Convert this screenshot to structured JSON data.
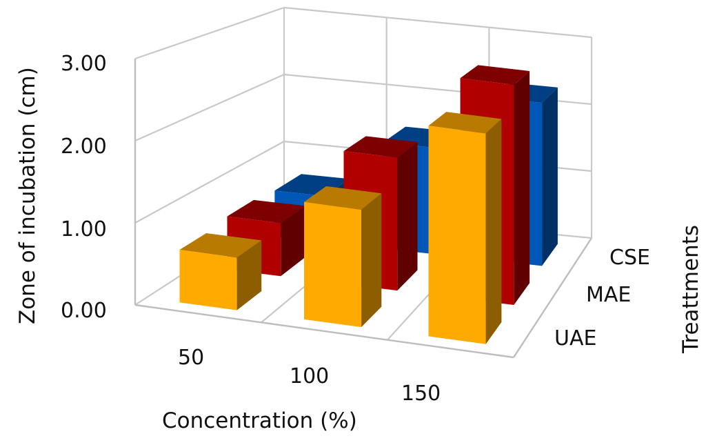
{
  "chart_data": {
    "type": "bar",
    "subtype": "3d-clustered-column",
    "title": "",
    "xlabel": "Concentration (%)",
    "ylabel": "Zone of incubation (cm)",
    "zlabel": "Treattments",
    "categories": [
      "50",
      "100",
      "150"
    ],
    "series": [
      {
        "name": "UAE",
        "values": [
          0.65,
          1.45,
          2.6
        ],
        "color": "#FFAA00"
      },
      {
        "name": "MAE",
        "values": [
          0.7,
          1.75,
          2.9
        ],
        "color": "#B00000"
      },
      {
        "name": "CSE",
        "values": [
          0.65,
          1.5,
          2.3
        ],
        "color": "#0057B8"
      }
    ],
    "yticks": [
      "0.00",
      "1.00",
      "2.00",
      "3.00"
    ],
    "ylim": [
      0,
      3
    ],
    "grid": true,
    "legend": "depth-axis labels (right side)"
  },
  "axes": {
    "y_title": "Zone of incubation (cm)",
    "x_title": "Concentration (%)",
    "z_title": "Treattments",
    "y_ticks": [
      "0.00",
      "1.00",
      "2.00",
      "3.00"
    ],
    "x_ticks": [
      "50",
      "100",
      "150"
    ],
    "z_ticks": [
      "UAE",
      "MAE",
      "CSE"
    ]
  }
}
